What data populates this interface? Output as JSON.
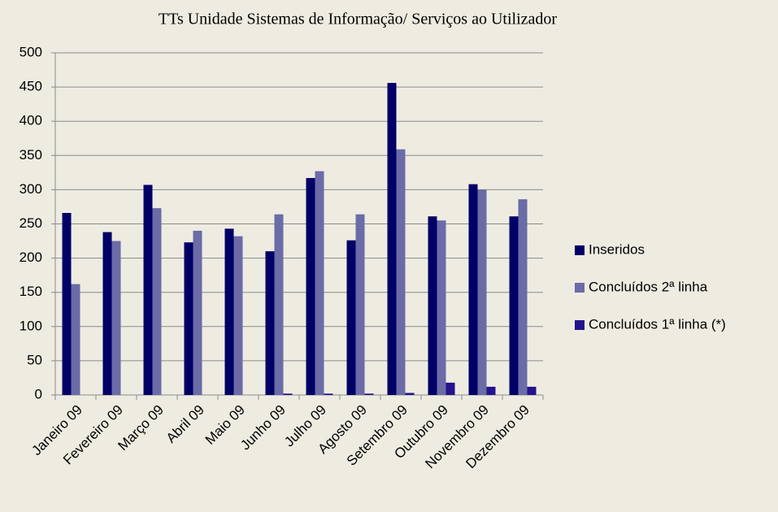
{
  "chart_data": {
    "type": "bar",
    "title": "TTs Unidade Sistemas de Informação/ Serviços ao Utilizador",
    "categories": [
      "Janeiro 09",
      "Fevereiro 09",
      "Março 09",
      "Abril 09",
      "Maio 09",
      "Junho 09",
      "Julho 09",
      "Agosto 09",
      "Setembro 09",
      "Outubro 09",
      "Novembro 09",
      "Dezembro 09"
    ],
    "series": [
      {
        "name": "Inseridos",
        "color": "#000066",
        "values": [
          266,
          238,
          307,
          223,
          243,
          210,
          317,
          226,
          456,
          261,
          308,
          261
        ]
      },
      {
        "name": "Concluídos 2ª linha",
        "color": "#6b6ba8",
        "values": [
          162,
          225,
          273,
          240,
          232,
          264,
          327,
          264,
          359,
          255,
          300,
          286
        ]
      },
      {
        "name": "Concluídos 1ª linha (*)",
        "color": "#24138c",
        "values": [
          0,
          0,
          0,
          0,
          0,
          2,
          2,
          2,
          3,
          18,
          12,
          12
        ]
      }
    ],
    "ylim": [
      0,
      500
    ],
    "yticks": [
      0,
      50,
      100,
      150,
      200,
      250,
      300,
      350,
      400,
      450,
      500
    ],
    "grid": true,
    "legend": "right"
  }
}
